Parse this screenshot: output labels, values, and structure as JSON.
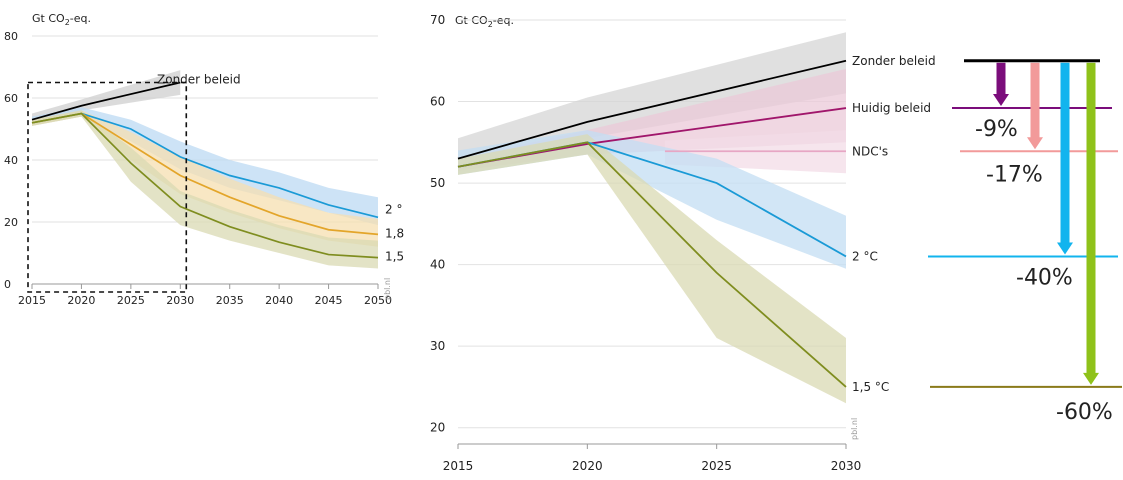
{
  "chart_data": [
    {
      "type": "line",
      "unit_label": "Gt CO₂-eq.",
      "x": [
        2015,
        2020,
        2025,
        2030,
        2035,
        2040,
        2045,
        2050
      ],
      "xlim": [
        2015,
        2050
      ],
      "ylim": [
        0,
        80
      ],
      "y_ticks": [
        0,
        20,
        40,
        60,
        80
      ],
      "x_ticks": [
        2015,
        2020,
        2025,
        2030,
        2035,
        2040,
        2045,
        2050
      ],
      "source": "pbl.nl",
      "series": [
        {
          "name": "Zonder beleid",
          "color": "#000000",
          "band_color": "#cfcfcf",
          "x": [
            2015,
            2020,
            2030
          ],
          "values": [
            53,
            57.5,
            65
          ],
          "band_lo": [
            52,
            56,
            61
          ],
          "band_hi": [
            55,
            59.5,
            69
          ]
        },
        {
          "name": "2 °",
          "color": "#1a9ad6",
          "band_color": "#bcdaf3",
          "x": [
            2015,
            2020,
            2025,
            2030,
            2035,
            2040,
            2045,
            2050
          ],
          "values": [
            52,
            55,
            50,
            41,
            35,
            31,
            25.5,
            21.5
          ],
          "band_lo": [
            51,
            54,
            46,
            37,
            31,
            27,
            23,
            19
          ],
          "band_hi": [
            54,
            57,
            53,
            46,
            40,
            36,
            31,
            28
          ]
        },
        {
          "name": "1,8",
          "color": "#e3a52a",
          "band_color": "#f6dfb0",
          "x": [
            2015,
            2020,
            2025,
            2030,
            2035,
            2040,
            2045,
            2050
          ],
          "values": [
            52,
            55,
            45,
            35,
            28,
            22,
            17.5,
            16
          ],
          "band_lo": [
            51,
            54,
            40,
            29,
            23,
            18,
            14,
            12
          ],
          "band_hi": [
            53,
            56,
            49,
            41,
            34,
            28,
            23,
            21
          ]
        },
        {
          "name": "1,5",
          "color": "#7f8d1f",
          "band_color": "#d9dab3",
          "x": [
            2015,
            2020,
            2025,
            2030,
            2035,
            2040,
            2045,
            2050
          ],
          "values": [
            52,
            55,
            39,
            25,
            18.5,
            13.5,
            9.5,
            8.5
          ],
          "band_lo": [
            51,
            54,
            33,
            19,
            14,
            10,
            6,
            5
          ],
          "band_hi": [
            53,
            56,
            44,
            30,
            24,
            19,
            15,
            14
          ]
        }
      ],
      "zoom_box": {
        "x_range": [
          2015,
          2030
        ],
        "y_range": [
          0,
          65
        ]
      }
    },
    {
      "type": "line",
      "unit_label": "Gt CO₂-eq.",
      "x": [
        2015,
        2020,
        2025,
        2030
      ],
      "xlim": [
        2015,
        2030
      ],
      "ylim": [
        18,
        70
      ],
      "y_ticks": [
        20,
        30,
        40,
        50,
        60,
        70
      ],
      "x_ticks": [
        2015,
        2020,
        2025,
        2030
      ],
      "source": "pbl.nl",
      "series": [
        {
          "name": "Zonder beleid",
          "color": "#000000",
          "band_color": "#d6d6d6",
          "x": [
            2015,
            2020,
            2030
          ],
          "values": [
            53,
            57.5,
            65
          ],
          "band_lo": [
            52,
            55.5,
            61
          ],
          "band_hi": [
            55.5,
            60.5,
            68.5
          ]
        },
        {
          "name": "Huidig beleid",
          "color": "#a0166b",
          "band_color": "#ebc9d8",
          "x": [
            2015,
            2020,
            2030
          ],
          "values": [
            52,
            54.8,
            59.2
          ],
          "band_lo": [
            51.5,
            53.5,
            55
          ],
          "band_hi": [
            53,
            56.5,
            64
          ]
        },
        {
          "name": "NDC's",
          "color": "#e7a6c4",
          "band_color": "#f3dce7",
          "x": [
            2023,
            2030
          ],
          "values": [
            53.9,
            53.9
          ],
          "band_lo": [
            52.3,
            51.2
          ],
          "band_hi": [
            55.2,
            56.5
          ]
        },
        {
          "name": "2 °C",
          "color": "#1a9ad6",
          "band_color": "#c3ddf3",
          "x": [
            2015,
            2020,
            2025,
            2030
          ],
          "values": [
            52,
            55,
            50,
            41
          ],
          "band_lo": [
            51,
            53.5,
            45.5,
            39.5
          ],
          "band_hi": [
            54,
            56.5,
            53,
            46
          ]
        },
        {
          "name": "1,5 °C",
          "color": "#7f8d1f",
          "band_color": "#d9dab3",
          "x": [
            2015,
            2020,
            2025,
            2030
          ],
          "values": [
            52,
            55,
            39,
            25
          ],
          "band_lo": [
            51,
            53.5,
            31,
            23
          ],
          "band_hi": [
            53,
            56,
            43,
            31
          ]
        }
      ]
    },
    {
      "type": "bar",
      "description_free": true,
      "baseline_color": "#000000",
      "reductions": [
        {
          "label": "-9%",
          "color": "#7b0d7b",
          "line_color": "#7b0d7b"
        },
        {
          "label": "-17%",
          "color": "#f29a9a",
          "line_color": "#f29a9a"
        },
        {
          "label": "-40%",
          "color": "#12b4ee",
          "line_color": "#12b4ee"
        },
        {
          "label": "-60%",
          "color": "#8fc21a",
          "line_color": "#8a7a1a"
        }
      ]
    }
  ]
}
